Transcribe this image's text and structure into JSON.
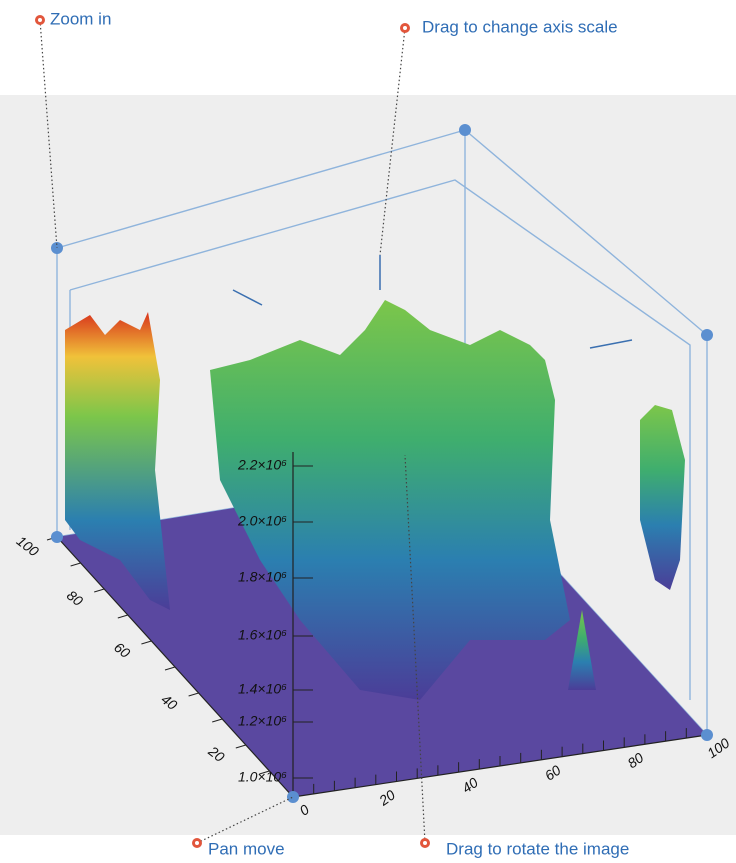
{
  "callouts": {
    "zoom": "Zoom in",
    "axis_scale": "Drag to change axis scale",
    "pan": "Pan move",
    "rotate": "Drag to rotate the image"
  },
  "axes": {
    "left_ticks": [
      "100",
      "80",
      "60",
      "40",
      "20"
    ],
    "right_ticks": [
      "0",
      "20",
      "40",
      "60",
      "80",
      "100"
    ],
    "z_ticks": [
      "1.0×10⁶",
      "1.2×10⁶",
      "1.4×10⁶",
      "1.6×10⁶",
      "1.8×10⁶",
      "2.0×10⁶",
      "2.2×10⁶"
    ]
  }
}
